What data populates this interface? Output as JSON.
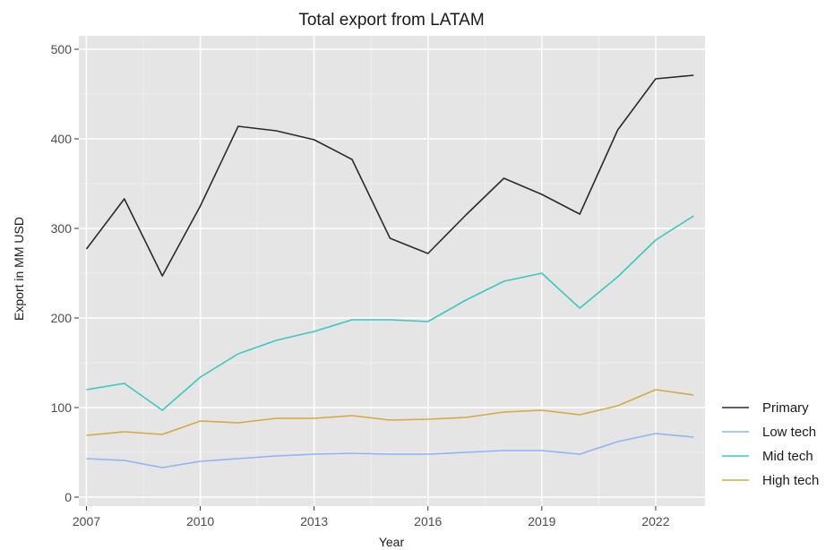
{
  "chart_data": {
    "type": "line",
    "title": "Total export from LATAM",
    "xlabel": "Year",
    "ylabel": "Export in MM USD",
    "xlim": [
      2006.8,
      2023.3
    ],
    "ylim": [
      -10,
      515
    ],
    "x_ticks": [
      "2007",
      "2010",
      "2013",
      "2016",
      "2019",
      "2022"
    ],
    "y_ticks": [
      "0",
      "100",
      "200",
      "300",
      "400",
      "500"
    ],
    "grid": true,
    "legend_position": "right",
    "x": [
      2007,
      2008,
      2009,
      2010,
      2011,
      2012,
      2013,
      2014,
      2015,
      2016,
      2017,
      2018,
      2019,
      2020,
      2021,
      2022,
      2023
    ],
    "series": [
      {
        "name": "Primary",
        "color": "#2b2b2b",
        "values": [
          277,
          333,
          247,
          325,
          414,
          409,
          399,
          377,
          289,
          272,
          315,
          356,
          338,
          316,
          410,
          467,
          471
        ]
      },
      {
        "name": "Low tech",
        "color": "#8fb3f5",
        "values": [
          43,
          41,
          33,
          40,
          43,
          46,
          48,
          49,
          48,
          48,
          50,
          52,
          52,
          48,
          62,
          71,
          67
        ]
      },
      {
        "name": "Mid tech",
        "color": "#3cc7bf",
        "values": [
          120,
          127,
          97,
          134,
          160,
          175,
          185,
          198,
          198,
          196,
          220,
          241,
          250,
          211,
          246,
          287,
          314
        ]
      },
      {
        "name": "High tech",
        "color": "#d4aa3f",
        "values": [
          69,
          73,
          70,
          85,
          83,
          88,
          88,
          91,
          86,
          87,
          89,
          95,
          97,
          92,
          102,
          120,
          114
        ]
      }
    ]
  },
  "style": {
    "panel_bg": "#e5e5e5",
    "grid_major": "#ffffff",
    "grid_minor": "#f2f2f2",
    "text": "#1a1a1a",
    "tick_text": "#4d4d4d"
  }
}
